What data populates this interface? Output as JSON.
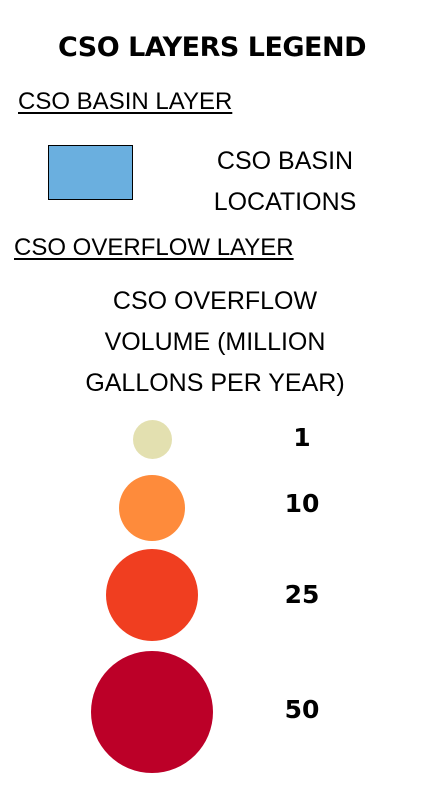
{
  "title": "CSO LAYERS LEGEND",
  "basin_section": {
    "heading": "CSO BASIN LAYER",
    "item_label": "CSO BASIN\nLOCATIONS",
    "swatch_color": "#6aafdf"
  },
  "overflow_section": {
    "heading": "CSO OVERFLOW LAYER",
    "volume_label": "CSO OVERFLOW\nVOLUME  (MILLION\nGALLONS PER YEAR)",
    "items": [
      {
        "value": "1",
        "color": "#e3e0b0"
      },
      {
        "value": "10",
        "color": "#fe8b3b"
      },
      {
        "value": "25",
        "color": "#f03e20"
      },
      {
        "value": "50",
        "color": "#bc0028"
      }
    ]
  }
}
